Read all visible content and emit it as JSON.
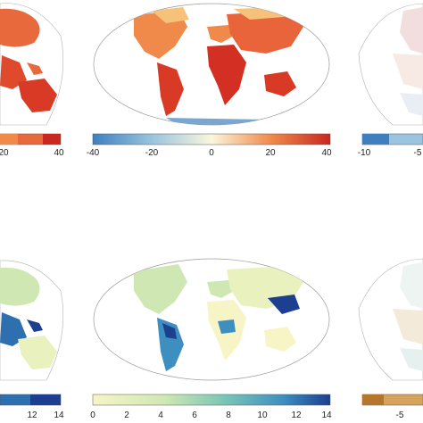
{
  "figure": {
    "panels": [
      {
        "id": "top-left",
        "field": "temperature",
        "colormap": "diverging-red",
        "colorbar": {
          "ticks": [
            "20",
            "40"
          ]
        }
      },
      {
        "id": "top-center",
        "field": "temperature",
        "colormap": "diverging-blue-red",
        "colorbar": {
          "ticks": [
            "-40",
            "-20",
            "0",
            "20",
            "40"
          ]
        }
      },
      {
        "id": "top-right",
        "field": "temperature-difference",
        "colormap": "diverging-blue-red",
        "colorbar": {
          "ticks": [
            "-10",
            "-5"
          ]
        }
      },
      {
        "id": "bottom-left",
        "field": "precipitation",
        "colormap": "sequential-blue",
        "colorbar": {
          "ticks": [
            "12",
            "14"
          ]
        }
      },
      {
        "id": "bottom-center",
        "field": "precipitation",
        "colormap": "sequential-yellow-green-blue",
        "colorbar": {
          "ticks": [
            "0",
            "2",
            "4",
            "6",
            "8",
            "10",
            "12",
            "14"
          ]
        }
      },
      {
        "id": "bottom-right",
        "field": "precipitation-difference",
        "colormap": "diverging-brown-teal",
        "colorbar": {
          "ticks": [
            "-5"
          ]
        }
      }
    ],
    "colors": {
      "warm_dark": "#c7281f",
      "warm": "#e86a3c",
      "warm_light": "#f6c27a",
      "neutral": "#fbf6dc",
      "cool_light": "#9ac4df",
      "cool": "#3f7fbf",
      "wet_dark": "#1c3f8f",
      "wet": "#3d8fc0",
      "wet_mid": "#7cc6b6",
      "dry": "#f7f5c6",
      "brown": "#b3762c",
      "ocean": "#ffffff",
      "outline": "#9a9a9a"
    }
  }
}
